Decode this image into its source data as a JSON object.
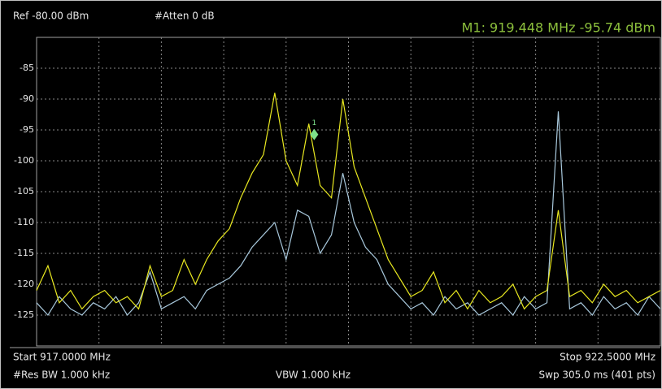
{
  "chart_data": {
    "type": "line",
    "header": {
      "ref": "Ref -80.00 dBm",
      "atten": "#Atten 0 dB",
      "readout": "M1:  919.448 MHz  -95.74 dBm"
    },
    "footer": {
      "start": "Start 917.0000 MHz",
      "stop": "Stop 922.5000 MHz",
      "rbw": "#Res BW 1.000 kHz",
      "vbw": "VBW 1.000 kHz",
      "sweep": "Swp 305.0 ms (401 pts)"
    },
    "x": [
      917.0,
      917.1,
      917.2,
      917.3,
      917.4,
      917.5,
      917.6,
      917.7,
      917.8,
      917.9,
      918.0,
      918.1,
      918.2,
      918.3,
      918.4,
      918.5,
      918.6,
      918.7,
      918.8,
      918.9,
      919.0,
      919.1,
      919.2,
      919.3,
      919.4,
      919.5,
      919.6,
      919.7,
      919.8,
      919.9,
      920.0,
      920.1,
      920.2,
      920.3,
      920.4,
      920.5,
      920.6,
      920.7,
      920.8,
      920.9,
      921.0,
      921.1,
      921.2,
      921.3,
      921.4,
      921.5,
      921.6,
      921.7,
      921.8,
      921.9,
      922.0,
      922.1,
      922.2,
      922.3,
      922.4,
      922.5
    ],
    "series": [
      {
        "color": "#a8c8dc",
        "values": [
          -123,
          -125,
          -122,
          -124,
          -125,
          -123,
          -124,
          -122,
          -125,
          -123,
          -118,
          -124,
          -123,
          -122,
          -124,
          -121,
          -120,
          -119,
          -117,
          -114,
          -112,
          -110,
          -116,
          -108,
          -109,
          -115,
          -112,
          -102,
          -110,
          -114,
          -116,
          -120,
          -122,
          -124,
          -123,
          -125,
          -122,
          -124,
          -123,
          -125,
          -124,
          -123,
          -125,
          -122,
          -124,
          -123,
          -92,
          -124,
          -123,
          -125,
          -122,
          -124,
          -123,
          -125,
          -122,
          -124
        ]
      },
      {
        "color": "#e8e820",
        "values": [
          -121,
          -117,
          -123,
          -121,
          -124,
          -122,
          -121,
          -123,
          -122,
          -124,
          -117,
          -122,
          -121,
          -116,
          -120,
          -116,
          -113,
          -111,
          -106,
          -102,
          -99,
          -89,
          -100,
          -104,
          -94,
          -104,
          -106,
          -90,
          -101,
          -106,
          -111,
          -116,
          -119,
          -122,
          -121,
          -118,
          -123,
          -121,
          -124,
          -121,
          -123,
          -122,
          -120,
          -124,
          -122,
          -121,
          -108,
          -122,
          -121,
          -123,
          -120,
          -122,
          -121,
          -123,
          -122,
          -121
        ]
      }
    ],
    "xlim": [
      917.0,
      922.5
    ],
    "x_divisions": 10,
    "ylim": [
      -130,
      -80
    ],
    "yticks": [
      -85,
      -90,
      -95,
      -100,
      -105,
      -110,
      -115,
      -120,
      -125
    ],
    "grid": true,
    "marker": {
      "label": "1",
      "x": 919.448,
      "y": -95.74,
      "color": "#7ee08a"
    }
  }
}
